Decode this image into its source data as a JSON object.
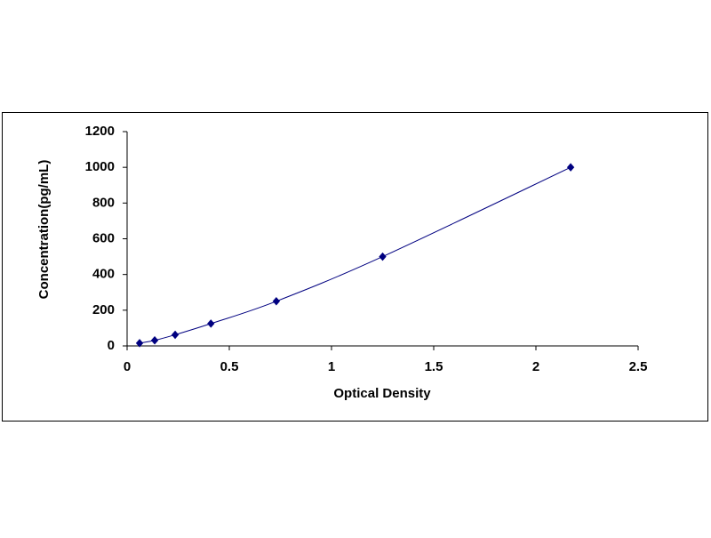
{
  "chart_data": {
    "type": "scatter",
    "x_label": "Optical Density",
    "y_label": "Concentration(pg/mL)",
    "x": [
      0.061,
      0.135,
      0.235,
      0.41,
      0.73,
      1.25,
      2.17
    ],
    "values": [
      15.6,
      31.25,
      62.5,
      125,
      250,
      500,
      1000
    ],
    "color": "#000080",
    "marker": "diamond",
    "trendline": true,
    "xlim": [
      0,
      2.5
    ],
    "xticks": [
      0,
      0.5,
      1,
      1.5,
      2,
      2.5
    ],
    "ylim": [
      0,
      1200
    ],
    "yticks": [
      0,
      200,
      400,
      600,
      800,
      1000,
      1200
    ],
    "grid": false
  }
}
